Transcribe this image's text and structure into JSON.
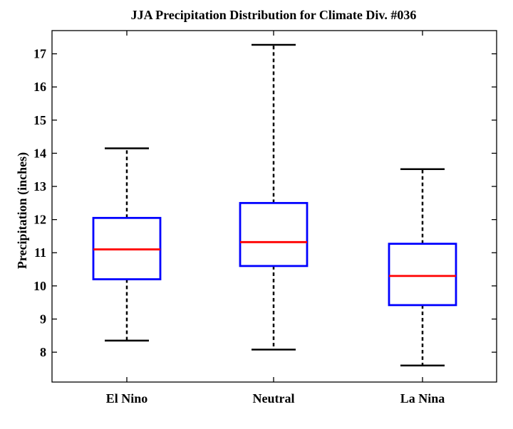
{
  "chart_data": {
    "type": "box",
    "title": "JJA Precipitation Distribution for Climate Div. #036",
    "xlabel": "",
    "ylabel": "Precipitation (inches)",
    "ylim": [
      7.1,
      17.7
    ],
    "yticks": [
      "8",
      "9",
      "10",
      "11",
      "12",
      "13",
      "14",
      "15",
      "16",
      "17"
    ],
    "yticks_values": [
      8,
      9,
      10,
      11,
      12,
      13,
      14,
      15,
      16,
      17
    ],
    "grid": false,
    "categories": [
      "El Nino",
      "Neutral",
      "La Nina"
    ],
    "boxes": [
      {
        "category": "El Nino",
        "whisker_low": 8.35,
        "q1": 10.2,
        "median": 11.1,
        "q3": 12.05,
        "whisker_high": 14.15
      },
      {
        "category": "Neutral",
        "whisker_low": 8.08,
        "q1": 10.6,
        "median": 11.32,
        "q3": 12.5,
        "whisker_high": 17.27
      },
      {
        "category": "La Nina",
        "whisker_low": 7.6,
        "q1": 9.42,
        "median": 10.3,
        "q3": 11.27,
        "whisker_high": 13.52
      }
    ],
    "colors": {
      "box": "#0000ff",
      "median": "#ff0000",
      "whisker": "#000000",
      "axes": "#000000"
    }
  }
}
